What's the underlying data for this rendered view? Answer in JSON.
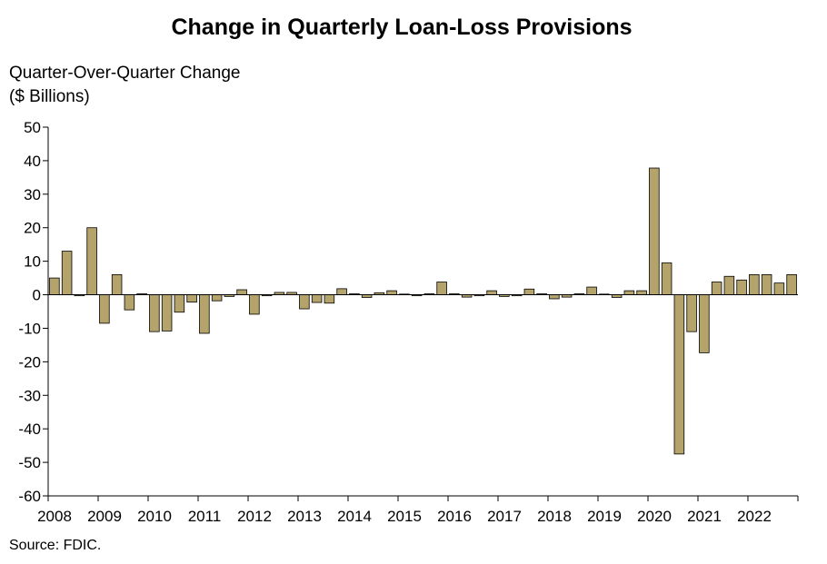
{
  "chart_data": {
    "type": "bar",
    "title": "Change in Quarterly Loan-Loss Provisions",
    "ylabel_line1": "Quarter-Over-Quarter Change",
    "ylabel_line2": "($ Billions)",
    "source": "Source: FDIC.",
    "ylim": [
      -60,
      50
    ],
    "yticks": [
      50,
      40,
      30,
      20,
      10,
      0,
      -10,
      -20,
      -30,
      -40,
      -50,
      -60
    ],
    "year_labels": [
      "2008",
      "2009",
      "2010",
      "2011",
      "2012",
      "2013",
      "2014",
      "2015",
      "2016",
      "2017",
      "2018",
      "2019",
      "2020",
      "2021",
      "2022"
    ],
    "colors": {
      "bar": "#b5a36c",
      "bar_stroke": "#000000",
      "axis": "#000000"
    },
    "grid": false,
    "categories": [
      "2008Q1",
      "2008Q2",
      "2008Q3",
      "2008Q4",
      "2009Q1",
      "2009Q2",
      "2009Q3",
      "2009Q4",
      "2010Q1",
      "2010Q2",
      "2010Q3",
      "2010Q4",
      "2011Q1",
      "2011Q2",
      "2011Q3",
      "2011Q4",
      "2012Q1",
      "2012Q2",
      "2012Q3",
      "2012Q4",
      "2013Q1",
      "2013Q2",
      "2013Q3",
      "2013Q4",
      "2014Q1",
      "2014Q2",
      "2014Q3",
      "2014Q4",
      "2015Q1",
      "2015Q2",
      "2015Q3",
      "2015Q4",
      "2016Q1",
      "2016Q2",
      "2016Q3",
      "2016Q4",
      "2017Q1",
      "2017Q2",
      "2017Q3",
      "2017Q4",
      "2018Q1",
      "2018Q2",
      "2018Q3",
      "2018Q4",
      "2019Q1",
      "2019Q2",
      "2019Q3",
      "2019Q4",
      "2020Q1",
      "2020Q2",
      "2020Q3",
      "2020Q4",
      "2021Q1",
      "2021Q2",
      "2021Q3",
      "2021Q4",
      "2022Q1",
      "2022Q2",
      "2022Q3",
      "2022Q4"
    ],
    "values": [
      5.0,
      13.0,
      -0.3,
      20.0,
      -8.5,
      6.0,
      -4.5,
      0.3,
      -11.0,
      -10.8,
      -5.2,
      -2.2,
      -11.5,
      -1.8,
      -0.5,
      1.5,
      -5.8,
      -0.3,
      0.7,
      0.7,
      -4.2,
      -2.3,
      -2.5,
      1.8,
      0.3,
      -0.8,
      0.6,
      1.2,
      0.2,
      -0.3,
      0.3,
      3.8,
      0.3,
      -0.7,
      -0.3,
      1.2,
      -0.5,
      -0.3,
      1.7,
      0.3,
      -1.2,
      -0.7,
      0.3,
      2.3,
      0.2,
      -0.8,
      1.2,
      1.2,
      37.8,
      9.5,
      -47.5,
      -11.0,
      -17.3,
      3.8,
      5.5,
      4.4,
      6.0,
      6.0,
      3.5,
      6.0
    ]
  }
}
